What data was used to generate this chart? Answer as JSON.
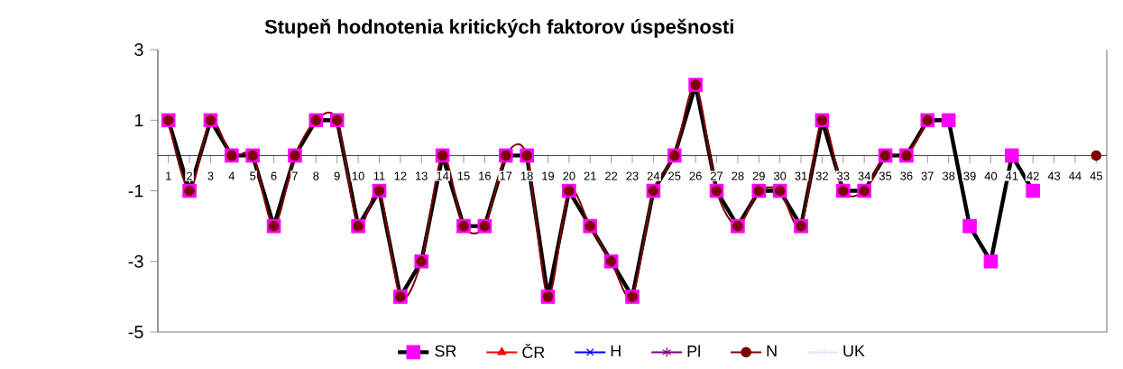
{
  "chart_data": {
    "type": "line",
    "title": "Stupeň hodnotenia kritických faktorov úspešnosti",
    "categories": [
      "1",
      "2",
      "3",
      "4",
      "5",
      "6",
      "7",
      "8",
      "9",
      "10",
      "11",
      "12",
      "13",
      "14",
      "15",
      "16",
      "17",
      "18",
      "19",
      "20",
      "21",
      "22",
      "23",
      "24",
      "25",
      "26",
      "27",
      "28",
      "29",
      "30",
      "31",
      "32",
      "33",
      "34",
      "35",
      "36",
      "37",
      "38",
      "39",
      "40",
      "41",
      "42",
      "43",
      "44",
      "45"
    ],
    "series": [
      {
        "name": "SR",
        "color": "#000000",
        "marker": "square",
        "colors": [
          "#ff00ff",
          "#ff00ff",
          "#ff00ff",
          "#ff00ff",
          "#ff00ff",
          "#ff00ff",
          "#ff00ff",
          "#ff00ff",
          "#ff00ff",
          "#ff00ff",
          "#ff00ff",
          "#ff00ff",
          "#ff00ff",
          "#ff00ff",
          "#ff00ff",
          "#ff00ff",
          "#ff00ff",
          "#ff00ff",
          "#ff00ff",
          "#ff00ff",
          "#ff00ff",
          "#ff00ff",
          "#ff00ff",
          "#ff00ff",
          "#ff00ff",
          "#ff00ff",
          "#ff00ff",
          "#ff00ff",
          "#ff00ff",
          "#ff00ff",
          "#ff00ff",
          "#ff00ff",
          "#ff00ff",
          "#ff00ff",
          "#ff00ff",
          "#ff00ff",
          "#ff00ff",
          "#ff00ff",
          "#ff00ff",
          "#ff00ff",
          "#ff00ff",
          "#ff00ff",
          null,
          null,
          null
        ],
        "values": [
          1,
          -1,
          1,
          0,
          0,
          -2,
          0,
          1,
          1,
          -2,
          -1,
          -4,
          -3,
          0,
          -2,
          -2,
          0,
          0,
          -4,
          -1,
          -2,
          -3,
          -4,
          -1,
          0,
          2,
          -1,
          -2,
          -1,
          -1,
          -2,
          1,
          -1,
          -1,
          0,
          0,
          1,
          1,
          -2,
          -3,
          0,
          -1,
          null,
          null,
          null
        ]
      },
      {
        "name": "ČR",
        "color": "#ff0000",
        "marker": "triangle",
        "values": [
          null,
          null,
          null,
          null,
          null,
          null,
          null,
          null,
          null,
          null,
          null,
          null,
          null,
          null,
          null,
          null,
          null,
          null,
          null,
          null,
          null,
          null,
          null,
          null,
          null,
          null,
          null,
          null,
          null,
          null,
          null,
          null,
          null,
          null,
          null,
          null,
          null,
          null,
          null,
          null,
          null,
          null,
          null,
          null,
          null
        ]
      },
      {
        "name": "H",
        "color": "#0000ff",
        "marker": "cross",
        "values": [
          null,
          null,
          null,
          null,
          null,
          null,
          null,
          null,
          null,
          null,
          null,
          null,
          null,
          null,
          null,
          null,
          null,
          null,
          null,
          null,
          null,
          null,
          null,
          null,
          null,
          null,
          null,
          null,
          null,
          null,
          null,
          null,
          null,
          null,
          null,
          null,
          null,
          null,
          null,
          null,
          null,
          null,
          null,
          null,
          null
        ]
      },
      {
        "name": "Pl",
        "color": "#800080",
        "marker": "star",
        "values": [
          null,
          null,
          null,
          null,
          null,
          null,
          null,
          null,
          null,
          null,
          null,
          null,
          null,
          null,
          null,
          null,
          null,
          null,
          null,
          null,
          null,
          null,
          null,
          null,
          null,
          null,
          null,
          null,
          null,
          null,
          null,
          null,
          null,
          null,
          null,
          null,
          null,
          null,
          null,
          null,
          null,
          null,
          null,
          null,
          null
        ]
      },
      {
        "name": "N",
        "color": "#800000",
        "marker": "circle",
        "values": [
          1,
          -1,
          1,
          0,
          0,
          -2,
          0,
          1,
          1,
          -2,
          -1,
          -4,
          -3,
          0,
          -2,
          -2,
          0,
          0,
          -4,
          -1,
          -2,
          -3,
          -4,
          -1,
          0,
          2,
          -1,
          -2,
          -1,
          -1,
          -2,
          1,
          -1,
          -1,
          0,
          0,
          1,
          null,
          null,
          null,
          null,
          null,
          null,
          null,
          0
        ]
      },
      {
        "name": "UK",
        "color": "#dde8ff",
        "marker": "cross",
        "values": [
          null,
          null,
          null,
          null,
          null,
          null,
          null,
          null,
          null,
          null,
          null,
          null,
          null,
          null,
          null,
          null,
          null,
          null,
          null,
          null,
          null,
          null,
          null,
          null,
          null,
          null,
          null,
          null,
          null,
          null,
          null,
          null,
          null,
          null,
          null,
          null,
          null,
          null,
          null,
          null,
          null,
          null,
          null,
          null,
          null
        ]
      }
    ],
    "ylim": [
      -5,
      3
    ],
    "yticks": [
      3,
      1,
      -1,
      -3,
      -5
    ],
    "grid": false,
    "legend": "bottom"
  }
}
